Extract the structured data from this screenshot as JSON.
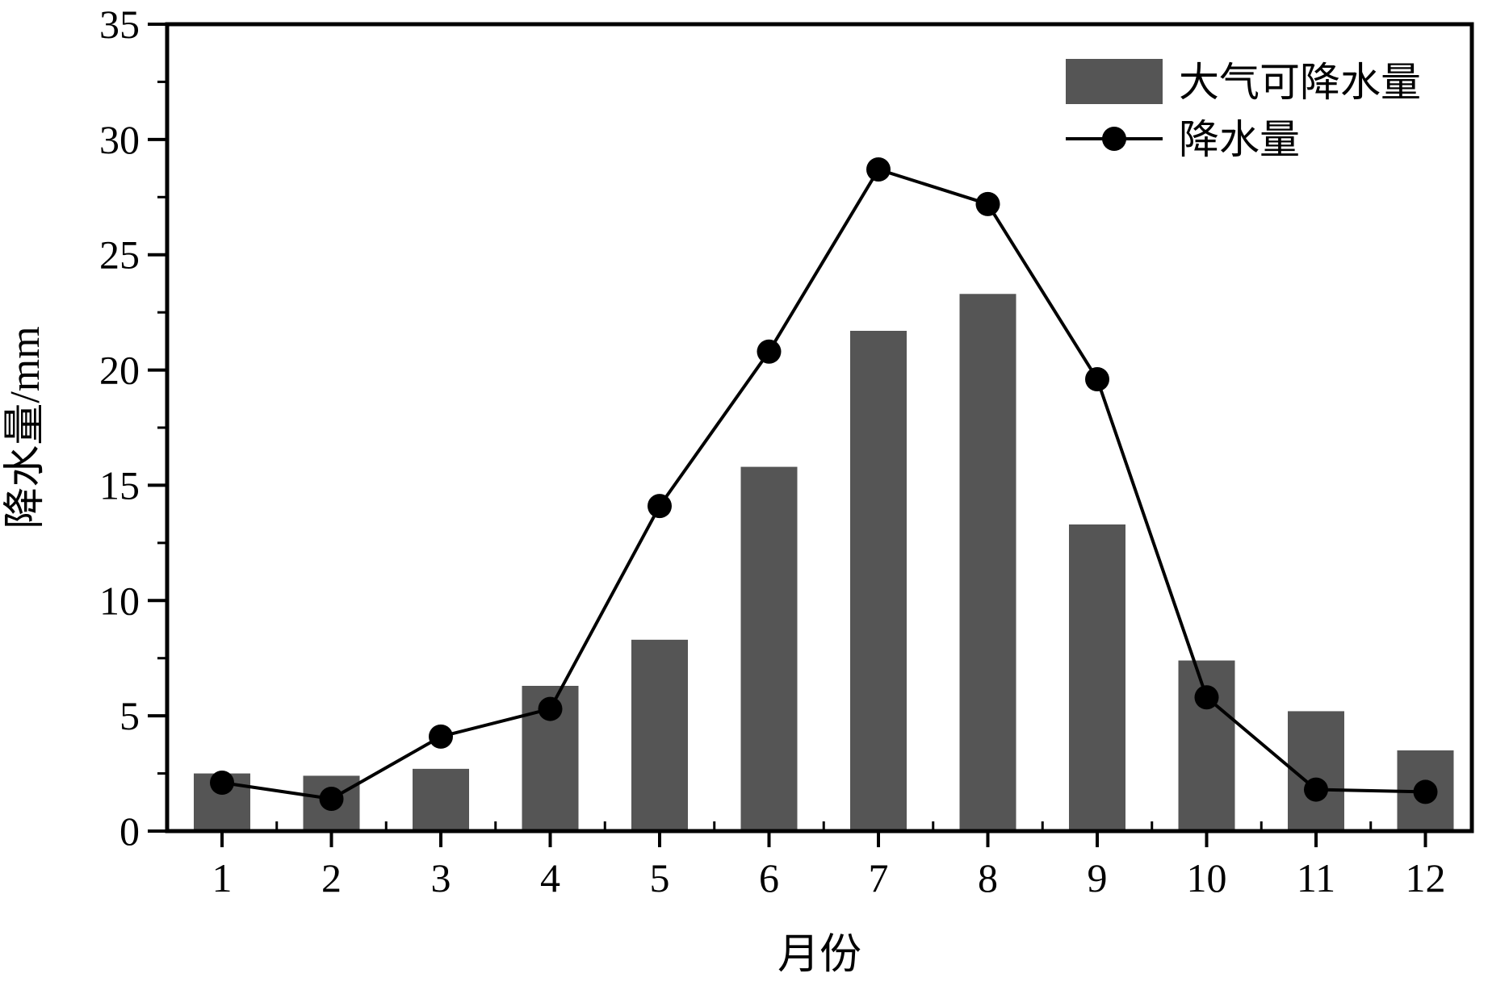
{
  "chart_data": {
    "type": "bar",
    "categories": [
      "1",
      "2",
      "3",
      "4",
      "5",
      "6",
      "7",
      "8",
      "9",
      "10",
      "11",
      "12"
    ],
    "series": [
      {
        "name": "大气可降水量",
        "type": "bar",
        "values": [
          2.5,
          2.4,
          2.7,
          6.3,
          8.3,
          15.8,
          21.7,
          23.3,
          13.3,
          7.4,
          5.2,
          3.5
        ]
      },
      {
        "name": "降水量",
        "type": "line",
        "values": [
          2.1,
          1.4,
          4.1,
          5.3,
          14.1,
          20.8,
          28.7,
          27.2,
          19.6,
          5.8,
          1.8,
          1.7
        ]
      }
    ],
    "xlabel": "月份",
    "ylabel": "降水量/mm",
    "ylim": [
      0,
      35
    ],
    "yticks": [
      0,
      5,
      10,
      15,
      20,
      25,
      30,
      35
    ],
    "grid": false,
    "legend_position": "top-right",
    "colors": {
      "bar": "#555555",
      "line": "#000000",
      "axis": "#000000"
    }
  }
}
